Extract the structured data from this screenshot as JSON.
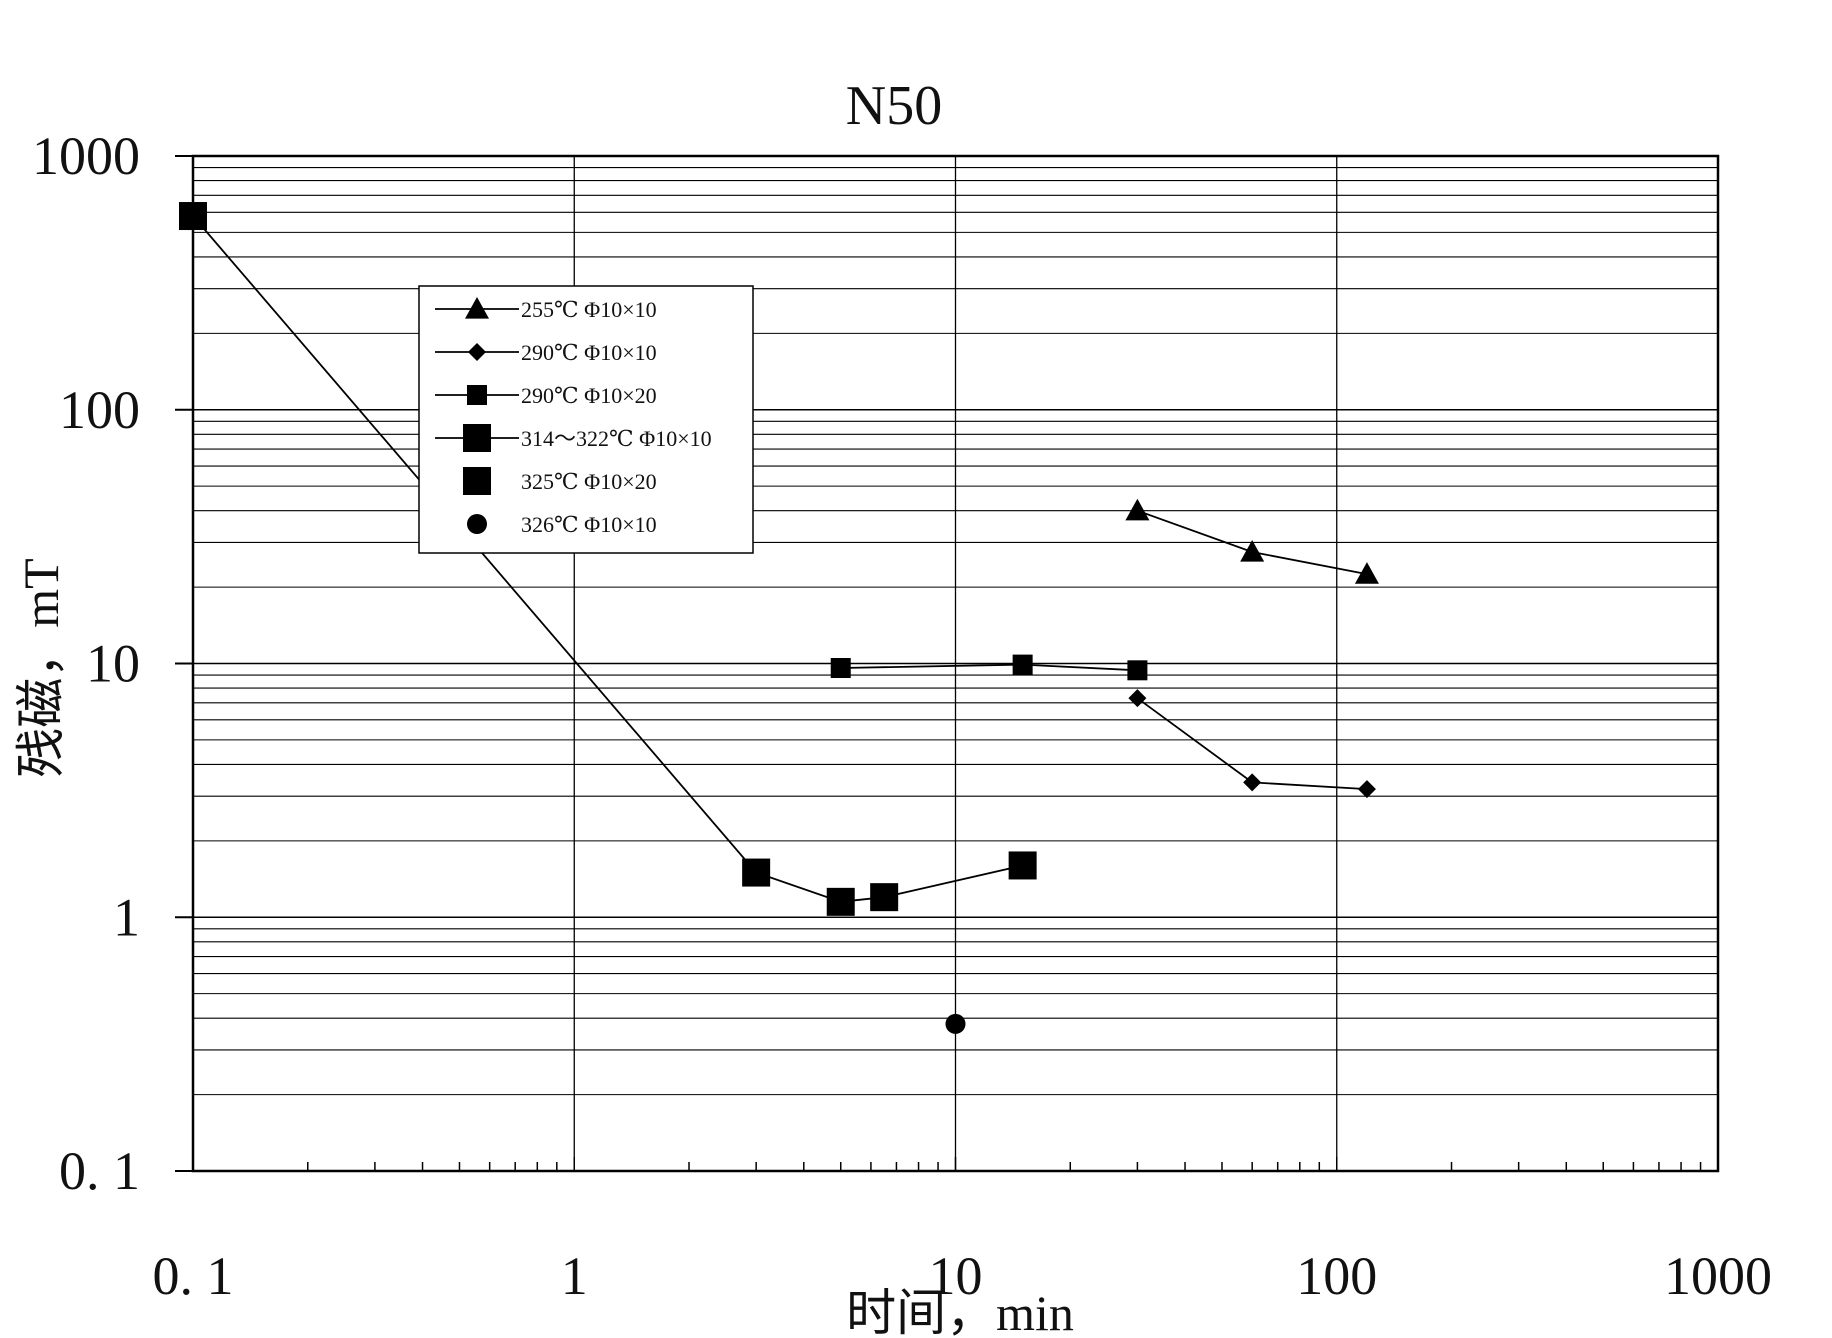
{
  "chart_data": {
    "type": "line",
    "title": "N50",
    "xlabel": "时间，min",
    "ylabel": "残磁，mT",
    "xscale": "log",
    "yscale": "log",
    "xlim": [
      0.1,
      1000
    ],
    "ylim": [
      0.1,
      1000
    ],
    "x_ticks": [
      0.1,
      1,
      10,
      100,
      1000
    ],
    "x_tick_labels": [
      "0. 1",
      "1",
      "10",
      "100",
      "1000"
    ],
    "y_ticks": [
      0.1,
      1,
      10,
      100,
      1000
    ],
    "y_tick_labels": [
      "0. 1",
      "1",
      "10",
      "100",
      "1000"
    ],
    "grid": {
      "x_major": true,
      "y_major": true,
      "y_minor": true
    },
    "legend_position": "upper-left inside plot",
    "series": [
      {
        "name": "255℃ Φ10×10",
        "marker": "triangle",
        "line": true,
        "x": [
          30,
          60,
          120
        ],
        "y": [
          40,
          27.5,
          22.5
        ]
      },
      {
        "name": "290℃ Φ10×10",
        "marker": "diamond",
        "line": true,
        "x": [
          30,
          60,
          120
        ],
        "y": [
          7.3,
          3.4,
          3.2
        ]
      },
      {
        "name": "290℃ Φ10×20",
        "marker": "square",
        "line": true,
        "x": [
          5,
          15,
          30
        ],
        "y": [
          9.6,
          9.9,
          9.4
        ]
      },
      {
        "name": "314～322℃ Φ10×10",
        "marker": "square-large",
        "line": true,
        "x": [
          0.1,
          3,
          5,
          6.5,
          15
        ],
        "y": [
          580,
          1.5,
          1.15,
          1.2,
          1.6
        ]
      },
      {
        "name": "325℃ Φ10×20",
        "marker": "square-large",
        "line": false,
        "x": [],
        "y": []
      },
      {
        "name": "326℃ Φ10×10",
        "marker": "circle",
        "line": false,
        "x": [
          10
        ],
        "y": [
          0.38
        ]
      }
    ]
  }
}
